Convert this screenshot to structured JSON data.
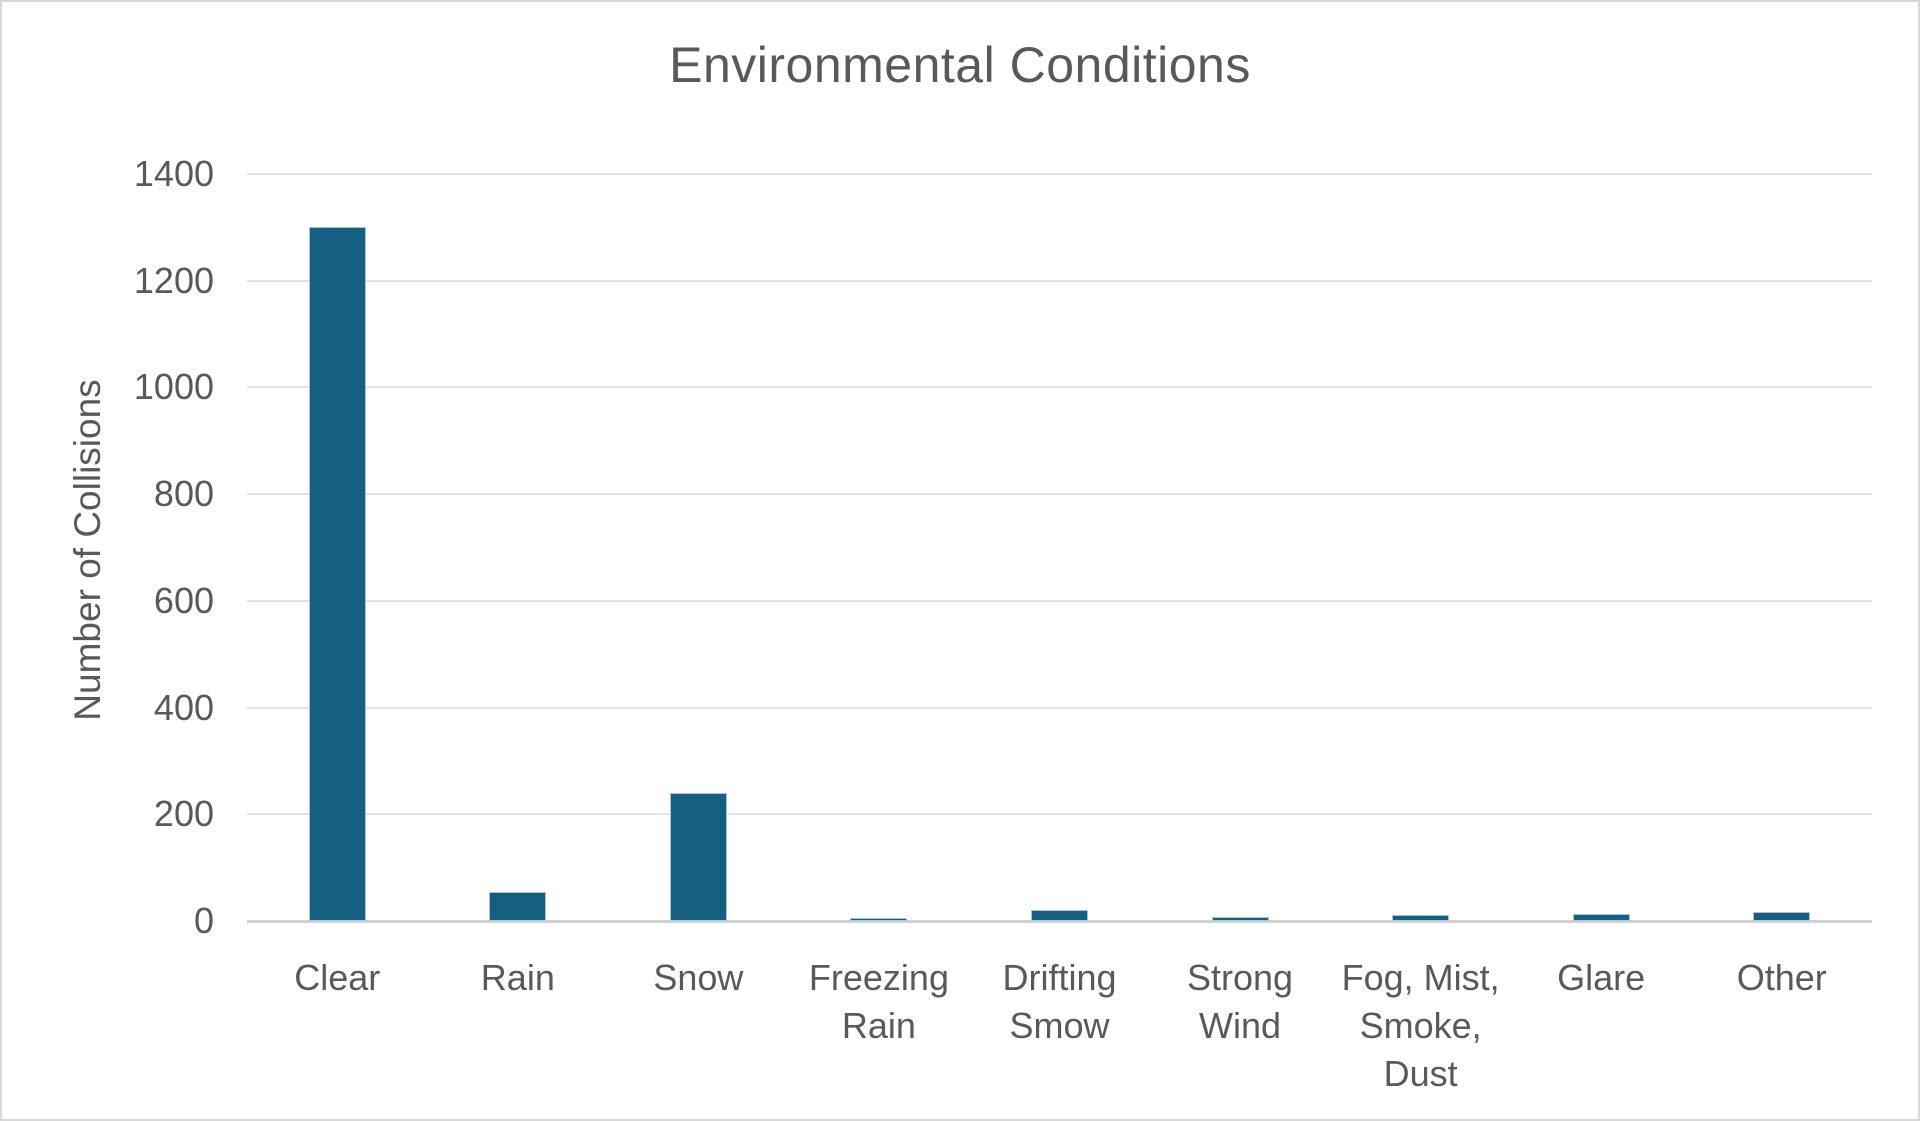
{
  "chart_data": {
    "type": "bar",
    "title": "Environmental Conditions",
    "xlabel": "",
    "ylabel": "Number of Collisions",
    "categories": [
      "Clear",
      "Rain",
      "Snow",
      "Freezing Rain",
      "Drifting Smow",
      "Strong Wind",
      "Fog, Mist, Smoke, Dust",
      "Glare",
      "Other"
    ],
    "values": [
      1300,
      54,
      240,
      5,
      20,
      8,
      11,
      13,
      16
    ],
    "y_ticks": [
      0,
      200,
      400,
      600,
      800,
      1000,
      1200,
      1400
    ],
    "ylim": [
      0,
      1400
    ],
    "grid": "horizontal",
    "legend": "none",
    "colors": {
      "bar_fill": "#156082",
      "bar_edge": "#a9c4d2",
      "gridline": "#e2e2e2",
      "axis_line": "#d2d2d2",
      "axis_text": "#595959",
      "title_text": "#595959",
      "background": "#ffffff",
      "frame_border": "#d8d8d8"
    }
  }
}
